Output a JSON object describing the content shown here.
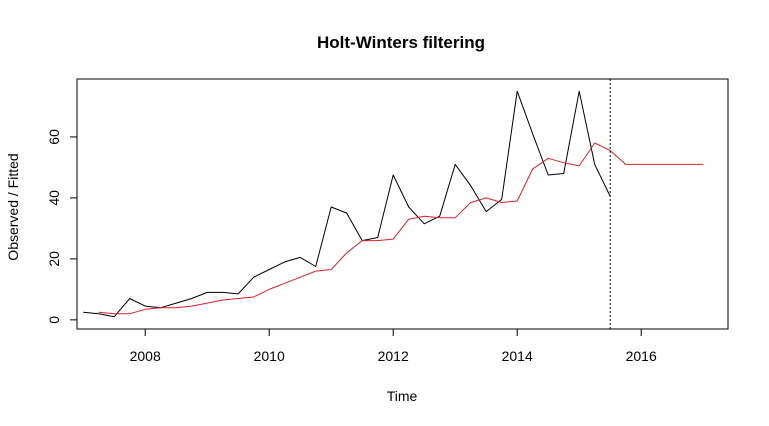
{
  "chart_data": {
    "type": "line",
    "title": "Holt-Winters filtering",
    "xlabel": "Time",
    "ylabel": "Observed / Fitted",
    "xlim": [
      2006.9,
      2017.4
    ],
    "ylim": [
      -3,
      79
    ],
    "x_ticks": [
      2008,
      2010,
      2012,
      2014,
      2016
    ],
    "x_tick_labels": [
      "2008",
      "2010",
      "2012",
      "2014",
      "2016"
    ],
    "y_ticks": [
      0,
      20,
      40,
      60
    ],
    "y_tick_labels": [
      "0",
      "20",
      "40",
      "60"
    ],
    "forecast_start": 2015.5,
    "grid": false,
    "series": [
      {
        "color": "#000000",
        "points": [
          [
            2007.0,
            2.5
          ],
          [
            2007.25,
            2.0
          ],
          [
            2007.5,
            1.0
          ],
          [
            2007.75,
            7.0
          ],
          [
            2008.0,
            4.5
          ],
          [
            2008.25,
            4.0
          ],
          [
            2008.5,
            5.5
          ],
          [
            2008.75,
            7.0
          ],
          [
            2009.0,
            9.0
          ],
          [
            2009.25,
            9.0
          ],
          [
            2009.5,
            8.5
          ],
          [
            2009.75,
            14.0
          ],
          [
            2010.0,
            16.5
          ],
          [
            2010.25,
            19.0
          ],
          [
            2010.5,
            20.5
          ],
          [
            2010.75,
            17.5
          ],
          [
            2011.0,
            37.0
          ],
          [
            2011.25,
            35.0
          ],
          [
            2011.5,
            26.0
          ],
          [
            2011.75,
            27.0
          ],
          [
            2012.0,
            47.5
          ],
          [
            2012.25,
            37.0
          ],
          [
            2012.5,
            31.5
          ],
          [
            2012.75,
            34.0
          ],
          [
            2013.0,
            51.0
          ],
          [
            2013.25,
            44.0
          ],
          [
            2013.5,
            35.5
          ],
          [
            2013.75,
            39.5
          ],
          [
            2014.0,
            75.0
          ],
          [
            2014.25,
            61.0
          ],
          [
            2014.5,
            47.5
          ],
          [
            2014.75,
            48.0
          ],
          [
            2015.0,
            75.0
          ],
          [
            2015.25,
            51.0
          ],
          [
            2015.5,
            40.5
          ]
        ]
      },
      {
        "color": "#df1f2f",
        "points": [
          [
            2007.25,
            2.5
          ],
          [
            2007.5,
            2.0
          ],
          [
            2007.75,
            2.0
          ],
          [
            2008.0,
            3.5
          ],
          [
            2008.25,
            4.0
          ],
          [
            2008.5,
            4.0
          ],
          [
            2008.75,
            4.5
          ],
          [
            2009.0,
            5.5
          ],
          [
            2009.25,
            6.5
          ],
          [
            2009.5,
            7.0
          ],
          [
            2009.75,
            7.5
          ],
          [
            2010.0,
            10.0
          ],
          [
            2010.25,
            12.0
          ],
          [
            2010.5,
            14.0
          ],
          [
            2010.75,
            16.0
          ],
          [
            2011.0,
            16.5
          ],
          [
            2011.25,
            22.0
          ],
          [
            2011.5,
            26.0
          ],
          [
            2011.75,
            26.0
          ],
          [
            2012.0,
            26.5
          ],
          [
            2012.25,
            33.0
          ],
          [
            2012.5,
            34.0
          ],
          [
            2012.75,
            33.5
          ],
          [
            2013.0,
            33.5
          ],
          [
            2013.25,
            38.5
          ],
          [
            2013.5,
            40.0
          ],
          [
            2013.75,
            38.5
          ],
          [
            2014.0,
            39.0
          ],
          [
            2014.25,
            49.5
          ],
          [
            2014.5,
            53.0
          ],
          [
            2014.75,
            51.5
          ],
          [
            2015.0,
            50.5
          ],
          [
            2015.25,
            58.0
          ],
          [
            2015.5,
            55.5
          ],
          [
            2015.75,
            51.0
          ],
          [
            2016.0,
            51.0
          ],
          [
            2016.5,
            51.0
          ],
          [
            2017.0,
            51.0
          ]
        ]
      }
    ]
  }
}
